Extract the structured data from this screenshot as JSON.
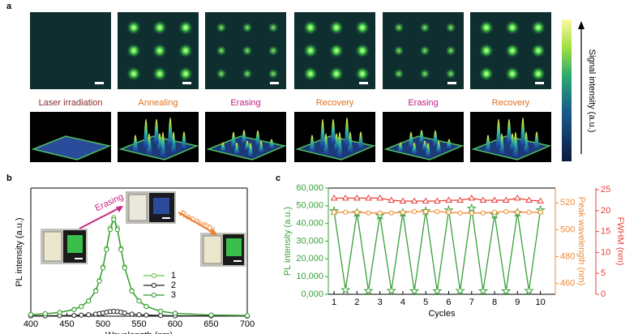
{
  "panel_labels": [
    "a",
    "b",
    "c"
  ],
  "panel_a": {
    "labels": [
      "Laser irradiation",
      "Annealing",
      "Erasing",
      "Recovery",
      "Erasing",
      "Recovery"
    ],
    "colorbar_label": "Signal intensity (a.u.)"
  },
  "chart_data": [
    {
      "type": "line",
      "xlabel": "Wavelength (nm)",
      "ylabel": "PL intensity (a.u.)",
      "annotations": [
        "Erasing",
        "Recovery"
      ],
      "x": [
        400,
        420,
        440,
        460,
        470,
        480,
        490,
        495,
        500,
        505,
        510,
        515,
        520,
        525,
        530,
        540,
        550,
        560,
        580,
        600,
        650,
        700
      ],
      "xlim": [
        400,
        700
      ],
      "xticks": [
        400,
        450,
        500,
        550,
        600,
        650,
        700
      ],
      "ylim": [
        0,
        1
      ],
      "legend": "center",
      "series": [
        {
          "name": "1",
          "color": "#66c64e",
          "marker": "circle",
          "values": [
            0.013,
            0.019,
            0.03,
            0.053,
            0.077,
            0.12,
            0.2,
            0.28,
            0.385,
            0.53,
            0.69,
            0.77,
            0.69,
            0.53,
            0.385,
            0.2,
            0.12,
            0.077,
            0.039,
            0.023,
            0.009,
            0.005
          ]
        },
        {
          "name": "2",
          "color": "#222222",
          "marker": "circle",
          "values": [
            0.002,
            0.003,
            0.004,
            0.006,
            0.008,
            0.011,
            0.016,
            0.02,
            0.025,
            0.031,
            0.036,
            0.038,
            0.036,
            0.031,
            0.025,
            0.016,
            0.011,
            0.008,
            0.005,
            0.003,
            0.002,
            0.001
          ]
        },
        {
          "name": "3",
          "color": "#2f9a2f",
          "marker": "circle",
          "values": [
            0.012,
            0.018,
            0.029,
            0.051,
            0.075,
            0.118,
            0.196,
            0.274,
            0.377,
            0.52,
            0.676,
            0.755,
            0.676,
            0.52,
            0.377,
            0.196,
            0.118,
            0.075,
            0.038,
            0.022,
            0.009,
            0.005
          ]
        }
      ]
    },
    {
      "type": "line",
      "xlabel": "Cycles",
      "ylabel": "PL intensity (a.u.)",
      "y2label": "Peak wavelength (nm)",
      "y3label": "FWHM (nm)",
      "x": [
        1,
        1.5,
        2,
        2.5,
        3,
        3.5,
        4,
        4.5,
        5,
        5.5,
        6,
        6.5,
        7,
        7.5,
        8,
        8.5,
        9,
        9.5,
        10
      ],
      "xlim": [
        0.75,
        10.65
      ],
      "xticks": [
        1,
        2,
        3,
        4,
        5,
        6,
        7,
        8,
        9,
        10
      ],
      "ylim": [
        0,
        60000
      ],
      "yticks": [
        {
          "value": 0,
          "label": "0,000"
        },
        {
          "value": 10000,
          "label": "10,000"
        },
        {
          "value": 20000,
          "label": "20,000"
        },
        {
          "value": 30000,
          "label": "30,000"
        },
        {
          "value": 40000,
          "label": "40,000"
        },
        {
          "value": 50000,
          "label": "50,000"
        },
        {
          "value": 60000,
          "label": "60,000"
        }
      ],
      "y2lim": [
        452,
        531
      ],
      "y2ticks": [
        460,
        480,
        500,
        520
      ],
      "y3lim": [
        0,
        25.4
      ],
      "y3ticks": [
        0,
        5,
        10,
        15,
        20,
        25
      ],
      "series": [
        {
          "color": "#3aa03a",
          "marker": "star",
          "axis": "y",
          "values": [
            47000,
            2500,
            46000,
            2000,
            44500,
            2000,
            46000,
            1800,
            47000,
            1800,
            47500,
            2000,
            48500,
            1800,
            45000,
            1800,
            46000,
            2000,
            47500
          ]
        },
        {
          "color": "#f08a30",
          "marker": "circle",
          "axis": "y2",
          "values": [
            513,
            513,
            513,
            512.5,
            512.5,
            512.5,
            513,
            513.5,
            513.5,
            513.5,
            513,
            512.5,
            512.5,
            512.5,
            513,
            513.5,
            513,
            513,
            513
          ]
        },
        {
          "color": "#e8403c",
          "marker": "triangle",
          "axis": "y3",
          "values": [
            23,
            23,
            23,
            23,
            23,
            22.5,
            22.3,
            22.3,
            22.3,
            22.3,
            22.5,
            22.5,
            23,
            22.5,
            22.5,
            22.5,
            23,
            22.5,
            22.3
          ]
        }
      ]
    }
  ]
}
